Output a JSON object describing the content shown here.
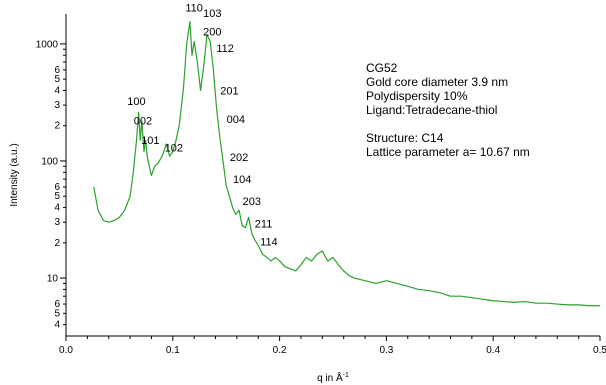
{
  "chart_data": {
    "type": "line",
    "xlabel": "q in Å",
    "xlabel_superscript": "-1",
    "ylabel": "Intensity (a.u.)",
    "xlim": [
      0.0,
      0.5
    ],
    "ylim": [
      3.2,
      1800
    ],
    "yscale": "log",
    "grid": false,
    "series_color": "#2ca02c",
    "x_ticks": [
      "0.0",
      "0.1",
      "0.2",
      "0.3",
      "0.4",
      "0.5"
    ],
    "y_major_ticks": [
      {
        "value": 10,
        "label": "10"
      },
      {
        "value": 100,
        "label": "100"
      },
      {
        "value": 1000,
        "label": "1000"
      }
    ],
    "y_minor_ticks": [
      {
        "value": 4,
        "label": "4"
      },
      {
        "value": 5,
        "label": "5"
      },
      {
        "value": 6,
        "label": "6"
      },
      {
        "value": 20,
        "label": "2"
      },
      {
        "value": 30,
        "label": "3"
      },
      {
        "value": 40,
        "label": "4"
      },
      {
        "value": 50,
        "label": "5"
      },
      {
        "value": 60,
        "label": "6"
      },
      {
        "value": 200,
        "label": "2"
      },
      {
        "value": 300,
        "label": "3"
      },
      {
        "value": 400,
        "label": "4"
      },
      {
        "value": 500,
        "label": "5"
      },
      {
        "value": 600,
        "label": "6"
      }
    ],
    "series": [
      {
        "x": [
          0.026,
          0.03,
          0.035,
          0.04,
          0.045,
          0.05,
          0.055,
          0.06,
          0.063,
          0.066,
          0.068,
          0.0695,
          0.071,
          0.073,
          0.0745,
          0.076,
          0.078,
          0.08,
          0.083,
          0.086,
          0.09,
          0.094,
          0.097,
          0.1,
          0.103,
          0.106,
          0.11,
          0.113,
          0.116,
          0.118,
          0.12,
          0.123,
          0.126,
          0.129,
          0.132,
          0.135,
          0.138,
          0.141,
          0.144,
          0.147,
          0.15,
          0.153,
          0.156,
          0.159,
          0.162,
          0.165,
          0.168,
          0.171,
          0.174,
          0.177,
          0.18,
          0.184,
          0.188,
          0.192,
          0.196,
          0.2,
          0.205,
          0.21,
          0.215,
          0.22,
          0.225,
          0.23,
          0.235,
          0.24,
          0.245,
          0.25,
          0.255,
          0.26,
          0.265,
          0.27,
          0.28,
          0.29,
          0.3,
          0.31,
          0.32,
          0.33,
          0.34,
          0.35,
          0.36,
          0.37,
          0.38,
          0.39,
          0.4,
          0.41,
          0.42,
          0.43,
          0.44,
          0.45,
          0.46,
          0.47,
          0.48,
          0.49,
          0.5
        ],
        "y": [
          60,
          38,
          31,
          30,
          31,
          33,
          38,
          50,
          80,
          150,
          260,
          150,
          220,
          120,
          150,
          110,
          90,
          75,
          90,
          95,
          110,
          140,
          110,
          120,
          150,
          200,
          420,
          1000,
          1550,
          800,
          1050,
          700,
          400,
          650,
          1200,
          1050,
          600,
          280,
          160,
          100,
          62,
          50,
          40,
          35,
          38,
          28,
          27,
          33,
          24,
          21,
          19,
          16,
          15,
          14,
          15,
          14,
          12.5,
          12,
          11.5,
          13,
          15,
          14,
          16,
          17,
          14,
          15,
          13,
          11.5,
          10.5,
          10,
          9.5,
          9,
          9.5,
          9,
          8.5,
          8,
          7.8,
          7.5,
          7,
          7,
          6.8,
          6.6,
          6.4,
          6.3,
          6.2,
          6.3,
          6.1,
          6.1,
          6.0,
          5.9,
          5.9,
          5.8,
          5.8
        ]
      }
    ],
    "peak_labels": [
      {
        "text": "100",
        "x": 0.066,
        "y": 300
      },
      {
        "text": "002",
        "x": 0.072,
        "y": 205
      },
      {
        "text": "101",
        "x": 0.079,
        "y": 140
      },
      {
        "text": "102",
        "x": 0.101,
        "y": 120
      },
      {
        "text": "110",
        "x": 0.12,
        "y": 1900
      },
      {
        "text": "103",
        "x": 0.137,
        "y": 1700
      },
      {
        "text": "200",
        "x": 0.137,
        "y": 1180
      },
      {
        "text": "112",
        "x": 0.149,
        "y": 850
      },
      {
        "text": "201",
        "x": 0.153,
        "y": 370
      },
      {
        "text": "004",
        "x": 0.159,
        "y": 210
      },
      {
        "text": "202",
        "x": 0.162,
        "y": 100
      },
      {
        "text": "104",
        "x": 0.165,
        "y": 65
      },
      {
        "text": "203",
        "x": 0.174,
        "y": 42
      },
      {
        "text": "211",
        "x": 0.185,
        "y": 27
      },
      {
        "text": "114",
        "x": 0.19,
        "y": 19
      }
    ],
    "annotations": [
      "CG52",
      "Gold core diameter 3.9 nm",
      "Polydispersity 10%",
      "Ligand:Tetradecane-thiol",
      "",
      "Structure: C14",
      "Lattice parameter a= 10.67 nm"
    ]
  }
}
